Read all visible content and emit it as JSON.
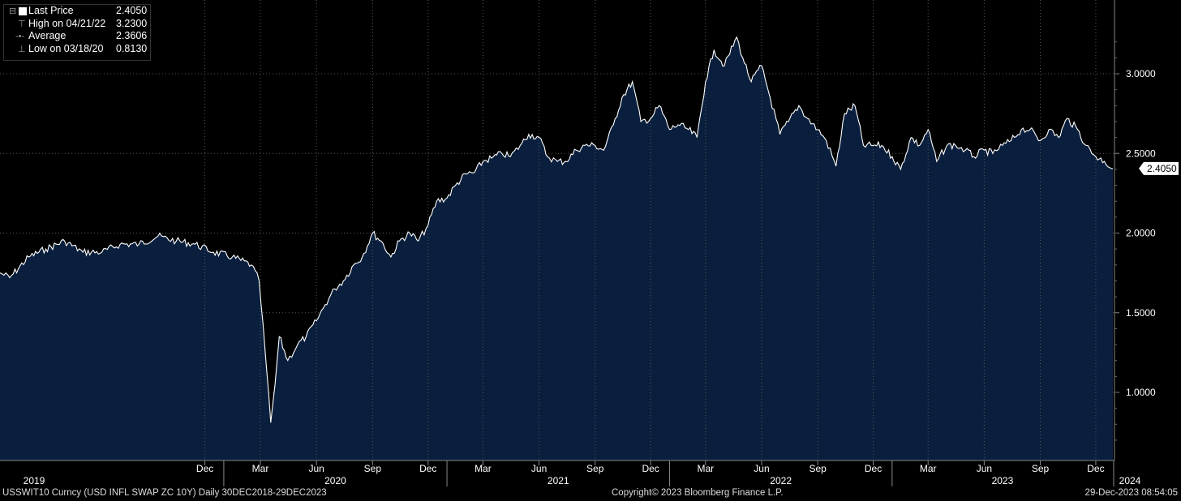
{
  "legend": {
    "last_price_label": "Last Price",
    "last_price_value": "2.4050",
    "high_label": "High on 04/21/22",
    "high_value": "3.2300",
    "average_label": "Average",
    "average_value": "2.3606",
    "low_label": "Low on 03/18/20",
    "low_value": "0.8130"
  },
  "footer": {
    "ticker": "USSWIT10 Curncy (USD INFL SWAP ZC 10Y)  Daily 30DEC2018-29DEC2023",
    "copyright": "Copyright© 2023 Bloomberg Finance L.P.",
    "timestamp": "29-Dec-2023 08:54:05"
  },
  "colors": {
    "background": "#000000",
    "area_fill": "#0a1f3d",
    "line": "#ffffff",
    "grid": "#6b6b6b"
  },
  "chart_data": {
    "type": "area",
    "x_axis": {
      "month_ticks": [
        "Dec",
        "Mar",
        "Jun",
        "Sep",
        "Dec",
        "Mar",
        "Jun",
        "Sep",
        "Dec",
        "Mar",
        "Jun",
        "Sep",
        "Dec",
        "Mar",
        "Jun",
        "Sep",
        "Dec"
      ],
      "year_labels": [
        "2019",
        "2020",
        "2021",
        "2022",
        "2023",
        "2024"
      ]
    },
    "ylim": [
      0.6,
      3.3
    ],
    "y_ticks": [
      "1.0000",
      "1.5000",
      "2.0000",
      "2.5000",
      "3.0000"
    ],
    "last_value_label": "2.4050",
    "grid": true,
    "series": [
      {
        "dates": [
          "2018-12-30",
          "2019-01-15",
          "2019-02-15",
          "2019-03-15",
          "2019-04-15",
          "2019-05-15",
          "2019-06-15",
          "2019-07-15",
          "2019-08-15",
          "2019-09-15",
          "2019-10-15",
          "2019-11-15",
          "2019-12-15",
          "2020-01-15",
          "2020-02-15",
          "2020-02-28",
          "2020-03-09",
          "2020-03-18",
          "2020-03-25",
          "2020-04-01",
          "2020-04-15",
          "2020-05-01",
          "2020-05-15",
          "2020-06-01",
          "2020-06-15",
          "2020-07-01",
          "2020-07-15",
          "2020-08-01",
          "2020-08-15",
          "2020-09-01",
          "2020-09-15",
          "2020-10-01",
          "2020-10-15",
          "2020-11-01",
          "2020-11-15",
          "2020-12-01",
          "2020-12-15",
          "2021-01-01",
          "2021-01-15",
          "2021-02-01",
          "2021-02-15",
          "2021-03-01",
          "2021-03-15",
          "2021-04-01",
          "2021-04-15",
          "2021-05-01",
          "2021-05-15",
          "2021-06-01",
          "2021-06-15",
          "2021-07-01",
          "2021-07-15",
          "2021-08-01",
          "2021-08-15",
          "2021-09-01",
          "2021-09-15",
          "2021-10-01",
          "2021-10-15",
          "2021-11-01",
          "2021-11-15",
          "2021-12-01",
          "2021-12-15",
          "2022-01-01",
          "2022-01-15",
          "2022-02-01",
          "2022-02-15",
          "2022-03-01",
          "2022-03-15",
          "2022-04-01",
          "2022-04-21",
          "2022-05-01",
          "2022-05-15",
          "2022-06-01",
          "2022-06-15",
          "2022-07-01",
          "2022-07-15",
          "2022-08-01",
          "2022-08-15",
          "2022-09-01",
          "2022-09-15",
          "2022-10-01",
          "2022-10-15",
          "2022-11-01",
          "2022-11-15",
          "2022-12-01",
          "2022-12-15",
          "2023-01-01",
          "2023-01-15",
          "2023-02-01",
          "2023-02-15",
          "2023-03-01",
          "2023-03-15",
          "2023-04-01",
          "2023-04-15",
          "2023-05-01",
          "2023-05-15",
          "2023-06-01",
          "2023-06-15",
          "2023-07-01",
          "2023-07-15",
          "2023-08-01",
          "2023-08-15",
          "2023-09-01",
          "2023-09-15",
          "2023-10-01",
          "2023-10-15",
          "2023-11-01",
          "2023-11-15",
          "2023-12-01",
          "2023-12-15",
          "2023-12-29"
        ],
        "values": [
          1.75,
          1.72,
          1.85,
          1.9,
          1.95,
          1.88,
          1.88,
          1.93,
          1.93,
          1.98,
          1.95,
          1.93,
          1.88,
          1.85,
          1.8,
          1.7,
          1.25,
          0.81,
          1.05,
          1.35,
          1.2,
          1.3,
          1.35,
          1.45,
          1.55,
          1.65,
          1.7,
          1.8,
          1.85,
          2.0,
          1.95,
          1.85,
          1.95,
          2.0,
          1.95,
          2.05,
          2.2,
          2.22,
          2.3,
          2.37,
          2.38,
          2.45,
          2.47,
          2.5,
          2.48,
          2.55,
          2.62,
          2.6,
          2.48,
          2.45,
          2.45,
          2.52,
          2.55,
          2.55,
          2.52,
          2.68,
          2.85,
          2.95,
          2.7,
          2.72,
          2.8,
          2.65,
          2.68,
          2.65,
          2.6,
          2.95,
          3.15,
          3.05,
          3.23,
          3.1,
          2.95,
          3.05,
          2.85,
          2.62,
          2.7,
          2.8,
          2.72,
          2.65,
          2.58,
          2.42,
          2.75,
          2.8,
          2.55,
          2.55,
          2.55,
          2.48,
          2.4,
          2.6,
          2.55,
          2.65,
          2.45,
          2.55,
          2.55,
          2.52,
          2.48,
          2.52,
          2.5,
          2.55,
          2.58,
          2.65,
          2.65,
          2.58,
          2.65,
          2.6,
          2.72,
          2.65,
          2.55,
          2.48,
          2.45,
          2.405
        ]
      }
    ]
  }
}
